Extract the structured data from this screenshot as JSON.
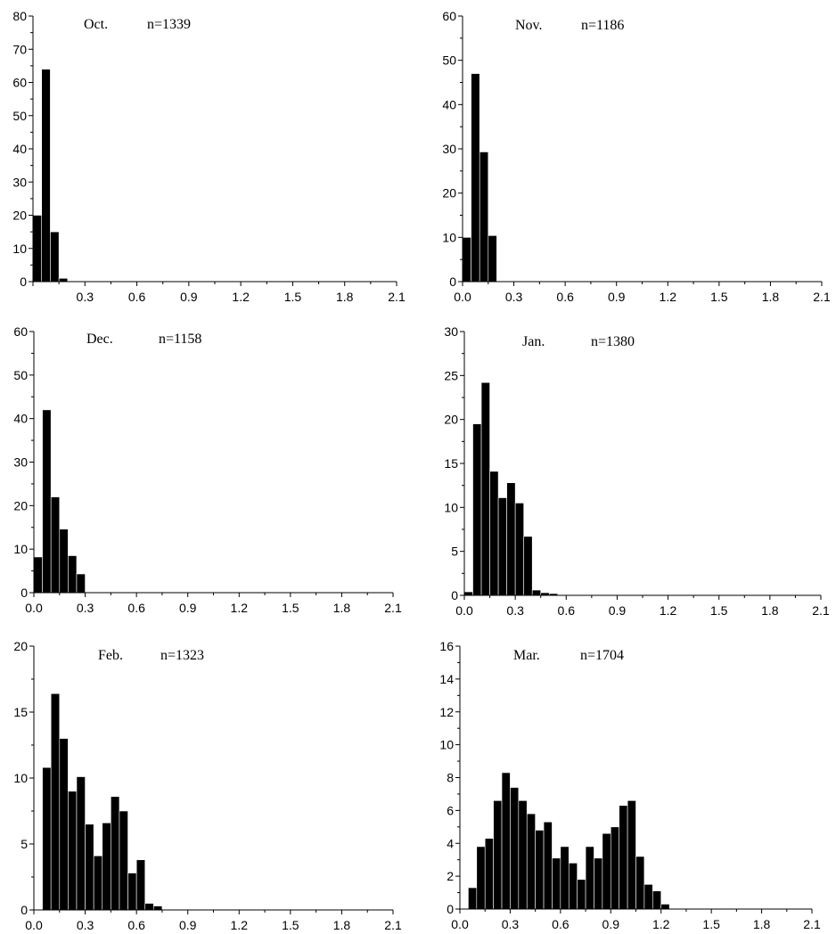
{
  "chart_data": [
    {
      "type": "bar",
      "month": "Oct.",
      "n_label": "n=1339",
      "bin_width": 0.05,
      "x": [
        0.025,
        0.075,
        0.125,
        0.175
      ],
      "values": [
        20,
        64,
        15,
        1
      ],
      "xlim": [
        0.0,
        2.1
      ],
      "ylim": [
        0,
        80
      ],
      "xticks": [
        0.3,
        0.6,
        0.9,
        1.2,
        1.5,
        1.8,
        2.1
      ],
      "xtick_labels": [
        "0.3",
        "0.6",
        "0.9",
        "1.2",
        "1.5",
        "1.8",
        "2.1"
      ],
      "yticks": [
        0,
        10,
        20,
        30,
        40,
        50,
        60,
        70,
        80
      ],
      "ytick_labels": [
        "0",
        "10",
        "20",
        "30",
        "40",
        "50",
        "60",
        "70",
        "80"
      ]
    },
    {
      "type": "bar",
      "month": "Nov.",
      "n_label": "n=1186",
      "bin_width": 0.05,
      "x": [
        0.025,
        0.075,
        0.125,
        0.175
      ],
      "values": [
        10,
        47,
        29.3,
        10.4
      ],
      "xlim": [
        0.0,
        2.1
      ],
      "ylim": [
        0,
        60
      ],
      "xticks": [
        0.0,
        0.3,
        0.6,
        0.9,
        1.2,
        1.5,
        1.8,
        2.1
      ],
      "xtick_labels": [
        "0.0",
        "0.3",
        "0.6",
        "0.9",
        "1.2",
        "1.5",
        "1.8",
        "2.1"
      ],
      "yticks": [
        0,
        10,
        20,
        30,
        40,
        50,
        60
      ],
      "ytick_labels": [
        "0",
        "10",
        "20",
        "30",
        "40",
        "50",
        "60"
      ]
    },
    {
      "type": "bar",
      "month": "Dec.",
      "n_label": "n=1158",
      "bin_width": 0.05,
      "x": [
        0.025,
        0.075,
        0.125,
        0.175,
        0.225,
        0.275
      ],
      "values": [
        8.2,
        42,
        22,
        14.6,
        8.5,
        4.3
      ],
      "xlim": [
        0.0,
        2.1
      ],
      "ylim": [
        0,
        60
      ],
      "xticks": [
        0.0,
        0.3,
        0.6,
        0.9,
        1.2,
        1.5,
        1.8,
        2.1
      ],
      "xtick_labels": [
        "0.0",
        "0.3",
        "0.6",
        "0.9",
        "1.2",
        "1.5",
        "1.8",
        "2.1"
      ],
      "yticks": [
        0,
        10,
        20,
        30,
        40,
        50,
        60
      ],
      "ytick_labels": [
        "0",
        "10",
        "20",
        "30",
        "40",
        "50",
        "60"
      ]
    },
    {
      "type": "bar",
      "month": "Jan.",
      "n_label": "n=1380",
      "bin_width": 0.05,
      "x": [
        0.025,
        0.075,
        0.125,
        0.175,
        0.225,
        0.275,
        0.325,
        0.375,
        0.425,
        0.475,
        0.525
      ],
      "values": [
        0.4,
        19.5,
        24.2,
        14.1,
        11.1,
        12.8,
        10.5,
        6.7,
        0.6,
        0.3,
        0.2
      ],
      "xlim": [
        0.0,
        2.1
      ],
      "ylim": [
        0,
        30
      ],
      "xticks": [
        0.0,
        0.3,
        0.6,
        0.9,
        1.2,
        1.5,
        1.8,
        2.1
      ],
      "xtick_labels": [
        "0.0",
        "0.3",
        "0.6",
        "0.9",
        "1.2",
        "1.5",
        "1.8",
        "2.1"
      ],
      "yticks": [
        0,
        5,
        10,
        15,
        20,
        25,
        30
      ],
      "ytick_labels": [
        "0",
        "5",
        "10",
        "15",
        "20",
        "25",
        "30"
      ]
    },
    {
      "type": "bar",
      "month": "Feb.",
      "n_label": "n=1323",
      "bin_width": 0.05,
      "x": [
        0.075,
        0.125,
        0.175,
        0.225,
        0.275,
        0.325,
        0.375,
        0.425,
        0.475,
        0.525,
        0.575,
        0.625,
        0.675,
        0.725
      ],
      "values": [
        10.8,
        16.4,
        13.0,
        9.0,
        10.1,
        6.5,
        4.1,
        6.6,
        8.6,
        7.5,
        2.8,
        3.8,
        0.5,
        0.3
      ],
      "xlim": [
        0.0,
        2.1
      ],
      "ylim": [
        0,
        20
      ],
      "xticks": [
        0.0,
        0.3,
        0.6,
        0.9,
        1.2,
        1.5,
        1.8,
        2.1
      ],
      "xtick_labels": [
        "0.0",
        "0.3",
        "0.6",
        "0.9",
        "1.2",
        "1.5",
        "1.8",
        "2.1"
      ],
      "yticks": [
        0,
        5,
        10,
        15,
        20
      ],
      "ytick_labels": [
        "0",
        "5",
        "10",
        "15",
        "20"
      ]
    },
    {
      "type": "bar",
      "month": "Mar.",
      "n_label": "n=1704",
      "bin_width": 0.05,
      "x": [
        0.075,
        0.125,
        0.175,
        0.225,
        0.275,
        0.325,
        0.375,
        0.425,
        0.475,
        0.525,
        0.575,
        0.625,
        0.675,
        0.725,
        0.775,
        0.825,
        0.875,
        0.925,
        0.975,
        1.025,
        1.075,
        1.125,
        1.175,
        1.225
      ],
      "values": [
        1.3,
        3.8,
        4.3,
        6.6,
        8.3,
        7.4,
        6.6,
        5.8,
        4.8,
        5.3,
        3.1,
        3.8,
        2.8,
        1.8,
        3.8,
        3.1,
        4.6,
        5.0,
        6.3,
        6.6,
        3.2,
        1.5,
        1.1,
        0.3
      ],
      "xlim": [
        0.0,
        2.1
      ],
      "ylim": [
        0,
        16
      ],
      "xticks": [
        0.0,
        0.3,
        0.6,
        0.9,
        1.2,
        1.5,
        1.8,
        2.1
      ],
      "xtick_labels": [
        "0.0",
        "0.3",
        "0.6",
        "0.9",
        "1.2",
        "1.5",
        "1.8",
        "2.1"
      ],
      "yticks": [
        0,
        2,
        4,
        6,
        8,
        10,
        12,
        14,
        16
      ],
      "ytick_labels": [
        "0",
        "2",
        "4",
        "6",
        "8",
        "10",
        "12",
        "14",
        "16"
      ]
    }
  ]
}
